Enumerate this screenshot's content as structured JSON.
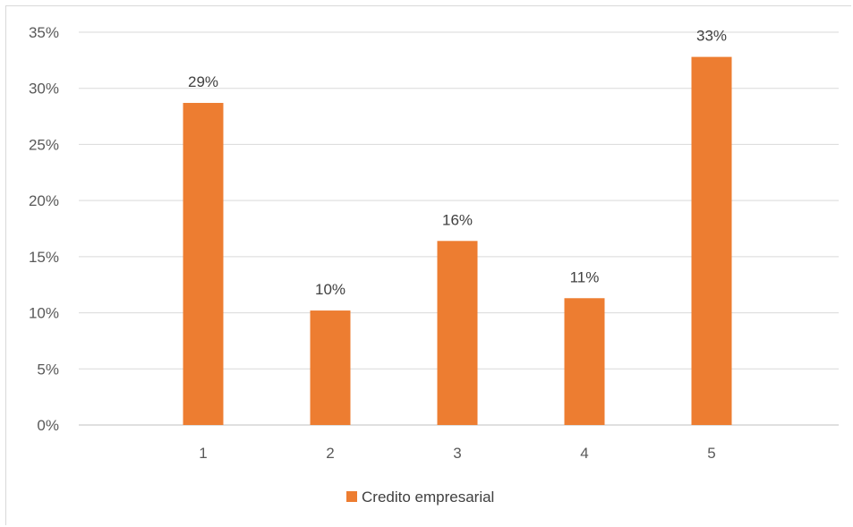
{
  "chart_data": {
    "type": "bar",
    "categories": [
      "",
      "1",
      "2",
      "3",
      "4",
      "5"
    ],
    "series": [
      {
        "name": "Credito empresarial",
        "color": "#ED7D31",
        "values": [
          null,
          0.287,
          0.102,
          0.164,
          0.113,
          0.328
        ],
        "data_labels": [
          "",
          "29%",
          "10%",
          "16%",
          "11%",
          "33%"
        ]
      }
    ],
    "y_ticks": [
      "0%",
      "5%",
      "10%",
      "15%",
      "20%",
      "25%",
      "30%",
      "35%"
    ],
    "ylim": [
      0,
      0.35
    ],
    "grid": true,
    "legend_position": "bottom"
  }
}
